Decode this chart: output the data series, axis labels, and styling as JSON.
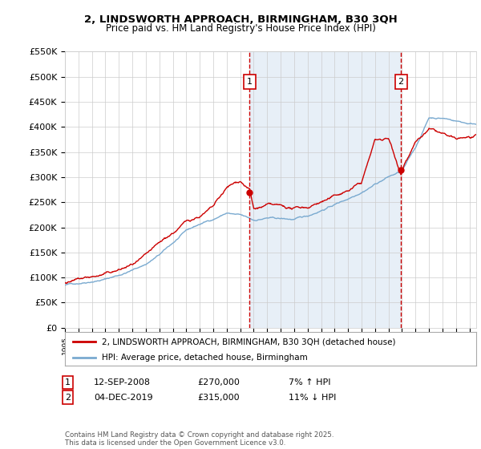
{
  "title_line1": "2, LINDSWORTH APPROACH, BIRMINGHAM, B30 3QH",
  "title_line2": "Price paid vs. HM Land Registry's House Price Index (HPI)",
  "background_color": "#ffffff",
  "plot_bg_color": "#ffffff",
  "ylabel_ticks": [
    "£0",
    "£50K",
    "£100K",
    "£150K",
    "£200K",
    "£250K",
    "£300K",
    "£350K",
    "£400K",
    "£450K",
    "£500K",
    "£550K"
  ],
  "ytick_values": [
    0,
    50000,
    100000,
    150000,
    200000,
    250000,
    300000,
    350000,
    400000,
    450000,
    500000,
    550000
  ],
  "marker1_year": 2008.7,
  "marker1_price": 270000,
  "marker1_label": "1",
  "marker1_date": "12-SEP-2008",
  "marker1_amount": "£270,000",
  "marker1_hpi": "7% ↑ HPI",
  "marker2_year": 2019.92,
  "marker2_price": 315000,
  "marker2_label": "2",
  "marker2_date": "04-DEC-2019",
  "marker2_amount": "£315,000",
  "marker2_hpi": "11% ↓ HPI",
  "legend_label1": "2, LINDSWORTH APPROACH, BIRMINGHAM, B30 3QH (detached house)",
  "legend_label2": "HPI: Average price, detached house, Birmingham",
  "line_paid_color": "#cc0000",
  "line_hpi_color": "#7aaad0",
  "vline_color": "#cc0000",
  "shade_color": "#d0e0f0",
  "grid_color": "#cccccc",
  "footer": "Contains HM Land Registry data © Crown copyright and database right 2025.\nThis data is licensed under the Open Government Licence v3.0.",
  "xmin": 1995,
  "xmax": 2025.5,
  "ymin": 0,
  "ymax": 550000
}
